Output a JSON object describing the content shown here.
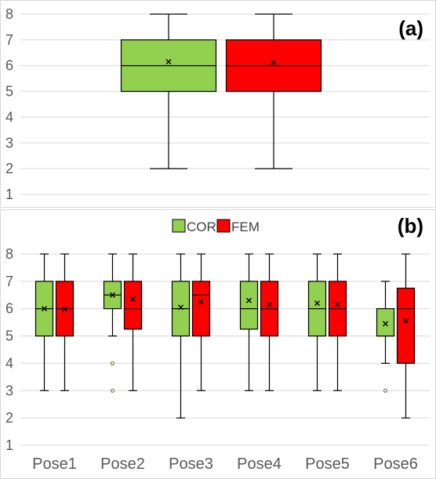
{
  "chart_data": [
    {
      "panel": "(a)",
      "type": "box",
      "ylim": [
        1,
        8
      ],
      "yticks": [
        1,
        2,
        3,
        4,
        5,
        6,
        7,
        8
      ],
      "grid": true,
      "series": [
        {
          "name": "COR",
          "color": "#92D050",
          "box": {
            "min": 2,
            "q1": 5,
            "median": 6,
            "q3": 7,
            "max": 8,
            "mean": 6.15,
            "outliers": []
          }
        },
        {
          "name": "FEM",
          "color": "#FF0000",
          "box": {
            "min": 2,
            "q1": 5,
            "median": 6,
            "q3": 7,
            "max": 8,
            "mean": 6.13,
            "outliers": []
          }
        }
      ]
    },
    {
      "panel": "(b)",
      "type": "box",
      "ylim": [
        1,
        8
      ],
      "yticks": [
        1,
        2,
        3,
        4,
        5,
        6,
        7,
        8
      ],
      "grid": true,
      "legend_position": "top-center",
      "categories": [
        "Pose1",
        "Pose2",
        "Pose3",
        "Pose4",
        "Pose5",
        "Pose6"
      ],
      "series": [
        {
          "name": "COR",
          "color": "#92D050",
          "boxes": [
            {
              "min": 3,
              "q1": 5,
              "median": 6,
              "q3": 7,
              "max": 8,
              "mean": 6.0,
              "outliers": []
            },
            {
              "min": 5,
              "q1": 6,
              "median": 6.5,
              "q3": 7,
              "max": 8,
              "mean": 6.5,
              "outliers": [
                4,
                3
              ]
            },
            {
              "min": 2,
              "q1": 5,
              "median": 6,
              "q3": 7,
              "max": 8,
              "mean": 6.05,
              "outliers": []
            },
            {
              "min": 3,
              "q1": 5.25,
              "median": 6,
              "q3": 7,
              "max": 8,
              "mean": 6.3,
              "outliers": []
            },
            {
              "min": 3,
              "q1": 5,
              "median": 6,
              "q3": 7,
              "max": 8,
              "mean": 6.2,
              "outliers": []
            },
            {
              "min": 4,
              "q1": 5,
              "median": 5,
              "q3": 6,
              "max": 7,
              "mean": 5.45,
              "outliers": [
                3
              ]
            }
          ]
        },
        {
          "name": "FEM",
          "color": "#FF0000",
          "boxes": [
            {
              "min": 3,
              "q1": 5,
              "median": 6,
              "q3": 7,
              "max": 8,
              "mean": 5.98,
              "outliers": []
            },
            {
              "min": 3,
              "q1": 5.25,
              "median": 6,
              "q3": 7,
              "max": 8,
              "mean": 6.35,
              "outliers": []
            },
            {
              "min": 3,
              "q1": 5,
              "median": 6.5,
              "q3": 7,
              "max": 8,
              "mean": 6.25,
              "outliers": []
            },
            {
              "min": 3,
              "q1": 5,
              "median": 6,
              "q3": 7,
              "max": 8,
              "mean": 6.15,
              "outliers": []
            },
            {
              "min": 3,
              "q1": 5,
              "median": 6,
              "q3": 7,
              "max": 8,
              "mean": 6.15,
              "outliers": []
            },
            {
              "min": 2,
              "q1": 4,
              "median": 6,
              "q3": 6.75,
              "max": 8,
              "mean": 5.55,
              "outliers": []
            }
          ]
        }
      ],
      "legend": [
        "COR",
        "FEM"
      ]
    }
  ]
}
